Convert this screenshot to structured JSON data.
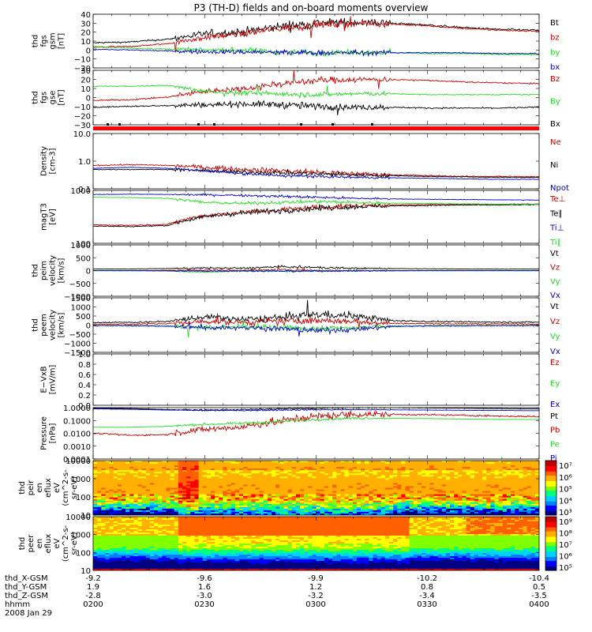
{
  "title": "P3 (TH-D) fields and on-board moments overview",
  "footer": {
    "rows": [
      {
        "label": "thd_X-GSM",
        "values": [
          "-9.2",
          "-9.6",
          "-9.9",
          "-10.2",
          "-10.4"
        ]
      },
      {
        "label": "thd_Y-GSM",
        "values": [
          "1.9",
          "1.6",
          "1.2",
          "0.8",
          "0.5"
        ]
      },
      {
        "label": "thd_Z-GSM",
        "values": [
          "-2.8",
          "-3.0",
          "-3.2",
          "-3.4",
          "-3.5"
        ]
      },
      {
        "label": "hhmm",
        "values": [
          "0200",
          "0230",
          "0300",
          "0330",
          "0400"
        ]
      }
    ],
    "date": "2008 Jan 29"
  },
  "colors": {
    "black": "#000000",
    "red": "#cc0000",
    "green": "#22dd22",
    "blue": "#0000cc",
    "flag": "#ff0000"
  },
  "chart_data": [
    {
      "type": "line",
      "ylabel": [
        "thd",
        "fgs",
        "gsm",
        "[nT]"
      ],
      "ylim": [
        -20,
        40
      ],
      "yticks": [
        "40",
        "30",
        "20",
        "10",
        "0",
        "−10",
        "−20"
      ],
      "log": false,
      "series": [
        {
          "name": "Bt",
          "color": "black",
          "x": [
            0,
            10,
            20,
            30,
            40,
            50,
            60,
            70,
            80,
            90,
            100,
            110,
            120
          ],
          "y": [
            8,
            9,
            12,
            18,
            20,
            26,
            30,
            31,
            30,
            28,
            25,
            23,
            22
          ],
          "noise": 5
        },
        {
          "name": "bz",
          "color": "red",
          "x": [
            0,
            10,
            20,
            30,
            40,
            50,
            60,
            70,
            80,
            90,
            100,
            110,
            120
          ],
          "y": [
            3,
            4,
            7,
            14,
            18,
            24,
            28,
            30,
            29,
            27,
            24,
            22,
            21
          ],
          "noise": 4
        },
        {
          "name": "by",
          "color": "green",
          "x": [
            0,
            10,
            20,
            30,
            40,
            50,
            60,
            70,
            80,
            90,
            100,
            110,
            120
          ],
          "y": [
            4,
            2,
            1,
            0,
            0,
            -2,
            -3,
            -3,
            -3,
            -4,
            -4,
            -5,
            -5
          ],
          "noise": 3
        },
        {
          "name": "bx",
          "color": "blue",
          "x": [
            0,
            10,
            20,
            30,
            40,
            50,
            60,
            70,
            80,
            90,
            100,
            110,
            120
          ],
          "y": [
            1,
            0,
            -1,
            -2,
            -2,
            -3,
            -3,
            -3,
            -3,
            -3,
            -3,
            -4,
            -4
          ],
          "noise": 3
        }
      ]
    },
    {
      "type": "line",
      "ylabel": [
        "thd",
        "fgs",
        "gse",
        "[nT]"
      ],
      "ylim": [
        -35,
        30
      ],
      "yticks": [
        "30",
        "20",
        "10",
        "0",
        "−10",
        "−20",
        "−30"
      ],
      "log": false,
      "series": [
        {
          "name": "Bz",
          "color": "red",
          "x": [
            0,
            10,
            20,
            30,
            40,
            50,
            60,
            70,
            80,
            90,
            100,
            110,
            120
          ],
          "y": [
            -6,
            -5,
            -2,
            5,
            8,
            14,
            18,
            19,
            19,
            18,
            16,
            15,
            14
          ],
          "noise": 4
        },
        {
          "name": "By",
          "color": "green",
          "x": [
            0,
            10,
            20,
            30,
            40,
            50,
            60,
            70,
            80,
            90,
            100,
            110,
            120
          ],
          "y": [
            11,
            11,
            12,
            5,
            3,
            2,
            1,
            2,
            2,
            1,
            1,
            1,
            1
          ],
          "noise": 3
        },
        {
          "name": "Bx",
          "color": "black",
          "x": [
            0,
            10,
            20,
            30,
            40,
            50,
            60,
            70,
            80,
            90,
            100,
            110,
            120
          ],
          "y": [
            -14,
            -13,
            -12,
            -11,
            -10,
            -11,
            -13,
            -14,
            -14,
            -15,
            -15,
            -15,
            -14
          ],
          "noise": 4
        }
      ]
    },
    {
      "type": "line",
      "ylabel": [
        "Density",
        "[cm-3]"
      ],
      "ylim": [
        0.1,
        10
      ],
      "yticks": [
        "10.0",
        "1.0",
        "0.1"
      ],
      "log": true,
      "series": [
        {
          "name": "Ne",
          "color": "red",
          "x": [
            0,
            10,
            20,
            30,
            40,
            50,
            60,
            70,
            80,
            90,
            100,
            110,
            120
          ],
          "y": [
            0.7,
            0.75,
            0.7,
            0.6,
            0.5,
            0.45,
            0.4,
            0.35,
            0.32,
            0.3,
            0.28,
            0.28,
            0.27
          ],
          "noise": 0.08
        },
        {
          "name": "Ni",
          "color": "black",
          "x": [
            0,
            10,
            20,
            30,
            40,
            50,
            60,
            70,
            80,
            90,
            100,
            110,
            120
          ],
          "y": [
            0.5,
            0.5,
            0.5,
            0.45,
            0.4,
            0.38,
            0.35,
            0.32,
            0.3,
            0.28,
            0.27,
            0.26,
            0.26
          ],
          "noise": 0.06
        },
        {
          "name": "Npot",
          "color": "blue",
          "x": [
            0,
            10,
            20,
            30,
            40,
            50,
            60,
            70,
            80,
            90,
            100,
            110,
            120
          ],
          "y": [
            0.55,
            0.6,
            0.55,
            0.45,
            0.35,
            0.3,
            0.28,
            0.26,
            0.25,
            0.24,
            0.23,
            0.22,
            0.22
          ],
          "noise": 0.04
        }
      ]
    },
    {
      "type": "line",
      "ylabel": [
        "magT3",
        "[eV]"
      ],
      "ylim": [
        100,
        10000
      ],
      "yticks": [
        "1000",
        "100"
      ],
      "log": true,
      "series": [
        {
          "name": "Te⊥",
          "color": "red",
          "x": [
            0,
            10,
            20,
            30,
            40,
            50,
            60,
            70,
            80,
            90,
            100,
            110,
            120
          ],
          "y": [
            500,
            480,
            520,
            1100,
            1500,
            1800,
            2300,
            2600,
            2800,
            2900,
            3000,
            3000,
            3100
          ],
          "noise": 0.08
        },
        {
          "name": "Te∥",
          "color": "black",
          "x": [
            0,
            10,
            20,
            30,
            40,
            50,
            60,
            70,
            80,
            90,
            100,
            110,
            120
          ],
          "y": [
            450,
            430,
            470,
            1000,
            1400,
            1700,
            2100,
            2400,
            2600,
            2700,
            2800,
            2800,
            2900
          ],
          "noise": 0.08
        },
        {
          "name": "Ti⊥",
          "color": "blue",
          "x": [
            0,
            10,
            20,
            30,
            40,
            50,
            60,
            70,
            80,
            90,
            100,
            110,
            120
          ],
          "y": [
            7000,
            7200,
            7000,
            6800,
            6500,
            6000,
            5500,
            5000,
            4800,
            4600,
            4500,
            4400,
            4300
          ],
          "noise": 0.04
        },
        {
          "name": "Ti∥",
          "color": "green",
          "x": [
            0,
            10,
            20,
            30,
            40,
            50,
            60,
            70,
            80,
            90,
            100,
            110,
            120
          ],
          "y": [
            5500,
            5400,
            5000,
            3500,
            3200,
            3500,
            3800,
            3500,
            3300,
            3200,
            3100,
            3000,
            3000
          ],
          "noise": 0.05
        }
      ]
    },
    {
      "type": "line",
      "ylabel": [
        "thd",
        "peim",
        "velocity",
        "[km/s]"
      ],
      "ylim": [
        -1000,
        1000
      ],
      "yticks": [
        "1000",
        "500",
        "0",
        "−500",
        "−1000"
      ],
      "log": false,
      "series": [
        {
          "name": "Vt",
          "color": "black",
          "x": [
            0,
            10,
            20,
            30,
            40,
            50,
            60,
            70,
            80,
            90,
            100,
            110,
            120
          ],
          "y": [
            60,
            60,
            80,
            100,
            90,
            150,
            120,
            90,
            80,
            70,
            60,
            60,
            60
          ],
          "noise": 40
        },
        {
          "name": "Vz",
          "color": "red",
          "x": [
            0,
            10,
            20,
            30,
            40,
            50,
            60,
            70,
            80,
            90,
            100,
            110,
            120
          ],
          "y": [
            0,
            0,
            10,
            20,
            10,
            30,
            10,
            0,
            0,
            0,
            0,
            0,
            0
          ],
          "noise": 30
        },
        {
          "name": "Vy",
          "color": "green",
          "x": [
            0,
            10,
            20,
            30,
            40,
            50,
            60,
            70,
            80,
            90,
            100,
            110,
            120
          ],
          "y": [
            -10,
            -10,
            -20,
            -60,
            -30,
            -30,
            -20,
            -10,
            -10,
            -10,
            -10,
            -10,
            -10
          ],
          "noise": 30
        },
        {
          "name": "Vx",
          "color": "blue",
          "x": [
            0,
            10,
            20,
            30,
            40,
            50,
            60,
            70,
            80,
            90,
            100,
            110,
            120
          ],
          "y": [
            0,
            0,
            -10,
            -20,
            -10,
            -20,
            -20,
            -10,
            -10,
            0,
            0,
            0,
            0
          ],
          "noise": 30
        }
      ]
    },
    {
      "type": "line",
      "ylabel": [
        "thd",
        "peem",
        "velocity",
        "[km/s]"
      ],
      "ylim": [
        -1500,
        1500
      ],
      "yticks": [
        "1500",
        "1000",
        "500",
        "0",
        "−500",
        "−1000",
        "−1500"
      ],
      "log": false,
      "series": [
        {
          "name": "Vt",
          "color": "black",
          "x": [
            0,
            10,
            20,
            30,
            40,
            50,
            60,
            70,
            80,
            90,
            100,
            110,
            120
          ],
          "y": [
            150,
            150,
            200,
            450,
            300,
            400,
            600,
            500,
            250,
            200,
            180,
            170,
            160
          ],
          "noise": 200
        },
        {
          "name": "Vz",
          "color": "red",
          "x": [
            0,
            10,
            20,
            30,
            40,
            50,
            60,
            70,
            80,
            90,
            100,
            110,
            120
          ],
          "y": [
            50,
            50,
            80,
            200,
            150,
            200,
            250,
            200,
            100,
            80,
            70,
            60,
            60
          ],
          "noise": 180
        },
        {
          "name": "Vy",
          "color": "green",
          "x": [
            0,
            10,
            20,
            30,
            40,
            50,
            60,
            70,
            80,
            90,
            100,
            110,
            120
          ],
          "y": [
            -20,
            -30,
            -50,
            -150,
            -100,
            -150,
            -200,
            -150,
            -50,
            -30,
            -20,
            -20,
            -20
          ],
          "noise": 150
        },
        {
          "name": "Vx",
          "color": "blue",
          "x": [
            0,
            10,
            20,
            30,
            40,
            50,
            60,
            70,
            80,
            90,
            100,
            110,
            120
          ],
          "y": [
            -30,
            -30,
            -60,
            -150,
            -120,
            -200,
            -300,
            -250,
            -80,
            -50,
            -40,
            -30,
            -30
          ],
          "noise": 150
        }
      ]
    },
    {
      "type": "line",
      "ylabel": [
        "E−VxB",
        "[mV/m]"
      ],
      "ylim": [
        0,
        1
      ],
      "yticks": [
        "1.0",
        "0.8",
        "0.6",
        "0.4",
        "0.2",
        "0.0"
      ],
      "log": false,
      "series": [
        {
          "name": "Ez",
          "color": "red",
          "x": [],
          "y": [],
          "noise": 0
        },
        {
          "name": "Ey",
          "color": "green",
          "x": [],
          "y": [],
          "noise": 0
        },
        {
          "name": "Ex",
          "color": "blue",
          "x": [],
          "y": [],
          "noise": 0
        }
      ]
    },
    {
      "type": "line",
      "ylabel": [
        "Pressure",
        "[nPa]"
      ],
      "ylim": [
        0.0001,
        1
      ],
      "yticks": [
        "1.0000",
        "0.1000",
        "0.0100",
        "0.0010",
        "0.0001"
      ],
      "log": true,
      "series": [
        {
          "name": "Pt",
          "color": "black",
          "x": [
            0,
            10,
            20,
            30,
            40,
            50,
            60,
            70,
            80,
            90,
            100,
            110,
            120
          ],
          "y": [
            0.9,
            0.85,
            0.7,
            0.65,
            0.7,
            0.8,
            0.9,
            1.0,
            1.0,
            0.95,
            0.9,
            0.85,
            0.8
          ],
          "noise": 0.05
        },
        {
          "name": "Pb",
          "color": "red",
          "x": [
            0,
            10,
            20,
            30,
            40,
            50,
            60,
            70,
            80,
            90,
            100,
            110,
            120
          ],
          "y": [
            0.01,
            0.007,
            0.008,
            0.02,
            0.03,
            0.08,
            0.2,
            0.3,
            0.3,
            0.28,
            0.25,
            0.22,
            0.2
          ],
          "noise": 0.25
        },
        {
          "name": "Pe",
          "color": "green",
          "x": [
            0,
            10,
            20,
            30,
            40,
            50,
            60,
            70,
            80,
            90,
            100,
            110,
            120
          ],
          "y": [
            0.03,
            0.03,
            0.035,
            0.05,
            0.06,
            0.08,
            0.12,
            0.15,
            0.15,
            0.14,
            0.13,
            0.12,
            0.12
          ],
          "noise": 0.08
        },
        {
          "name": "Pi",
          "color": "blue",
          "x": [
            0,
            10,
            20,
            30,
            40,
            50,
            60,
            70,
            80,
            90,
            100,
            110,
            120
          ],
          "y": [
            0.8,
            0.75,
            0.65,
            0.6,
            0.6,
            0.65,
            0.7,
            0.7,
            0.68,
            0.65,
            0.62,
            0.6,
            0.58
          ],
          "noise": 0.04
        }
      ]
    },
    {
      "type": "heatmap",
      "ylabel": [
        "thd",
        "peir",
        "en",
        "eflux",
        "eV",
        "(cm^2-s-",
        "sr-eV)"
      ],
      "ylim": [
        5,
        30000
      ],
      "yticks": [
        "10000",
        "1000",
        "100",
        "10"
      ],
      "log": true,
      "colorbar": {
        "labels": [
          "10⁷",
          "10⁶",
          "10⁵",
          "10⁴",
          "10³"
        ]
      }
    },
    {
      "type": "heatmap",
      "ylabel": [
        "thd",
        "peer",
        "en",
        "eflux",
        "eV",
        "(cm^2-s-",
        "sr-eV)"
      ],
      "ylim": [
        7,
        30000
      ],
      "yticks": [
        "10000",
        "1000",
        "100",
        "10"
      ],
      "log": true,
      "colorbar": {
        "labels": [
          "10⁹",
          "10⁸",
          "10⁷",
          "10⁶",
          "10⁵"
        ]
      }
    }
  ]
}
